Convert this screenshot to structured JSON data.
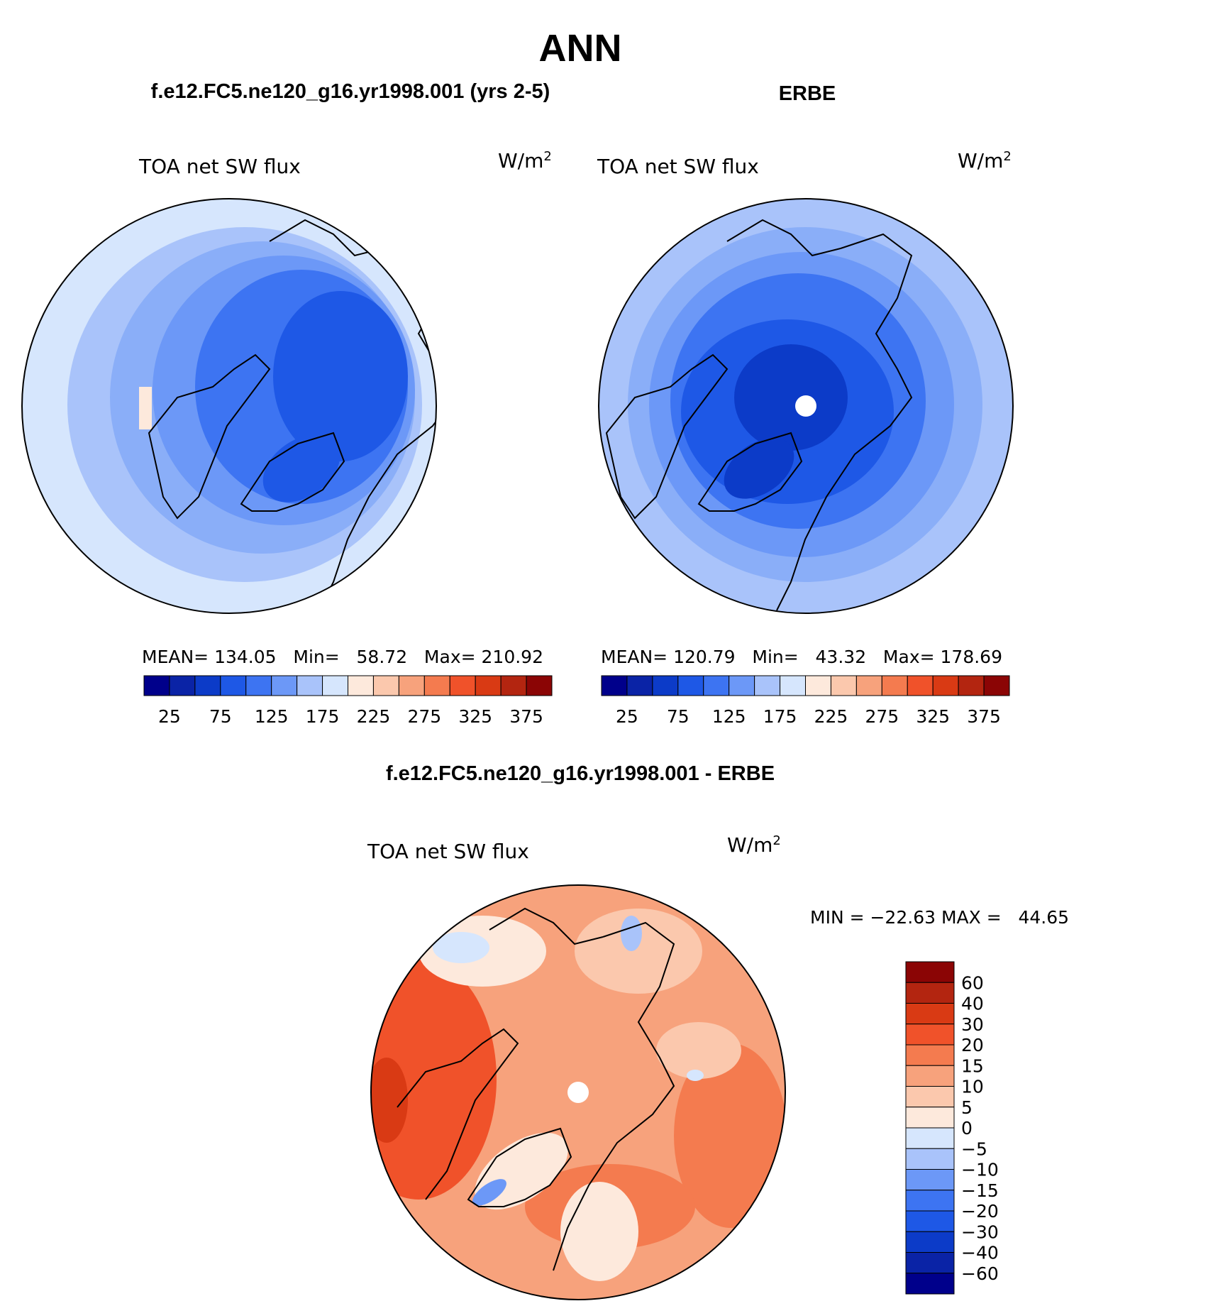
{
  "title": "ANN",
  "panels": [
    {
      "case": "f.e12.FC5.ne120_g16.yr1998.001 (yrs 2-5)",
      "variable": "TOA net SW flux",
      "units": "W/m",
      "units_exp": "2",
      "stats": "MEAN= 134.05   Min=   58.72   Max= 210.92",
      "colorbar_labels": [
        "25",
        "75",
        "125",
        "175",
        "225",
        "275",
        "325",
        "375"
      ],
      "dominant_levels": [
        75,
        100,
        125,
        150,
        175,
        200,
        225
      ],
      "pole_hole": false
    },
    {
      "case": "ERBE",
      "variable": "TOA net SW flux",
      "units": "W/m",
      "units_exp": "2",
      "stats": "MEAN= 120.79   Min=   43.32   Max= 178.69",
      "colorbar_labels": [
        "25",
        "75",
        "125",
        "175",
        "225",
        "275",
        "325",
        "375"
      ],
      "dominant_levels": [
        50,
        75,
        100,
        125,
        150,
        175
      ],
      "pole_hole": true
    }
  ],
  "diff_panel": {
    "title": "f.e12.FC5.ne120_g16.yr1998.001 - ERBE",
    "variable": "TOA net SW flux",
    "units": "W/m",
    "units_exp": "2",
    "minmax": "MIN = −22.63 MAX =   44.65",
    "colorbar_labels": [
      "60",
      "40",
      "30",
      "20",
      "15",
      "10",
      "5",
      "0",
      "−5",
      "−10",
      "−15",
      "−20",
      "−30",
      "−40",
      "−60"
    ]
  },
  "colors": {
    "abs_scale": [
      "#00008b",
      "#0a23a6",
      "#0c3bc8",
      "#1e58e6",
      "#3d74f2",
      "#6c98f7",
      "#a9c3fa",
      "#d6e6fd",
      "#fde9dc",
      "#fbc8ad",
      "#f7a27c",
      "#f47b4f",
      "#f0522a",
      "#d93a14",
      "#b32510",
      "#8b0505"
    ],
    "diff_scale": [
      "#8b0505",
      "#b32510",
      "#d93a14",
      "#f0522a",
      "#f47b4f",
      "#f7a27c",
      "#fbc8ad",
      "#fde9dc",
      "#d6e6fd",
      "#a9c3fa",
      "#6c98f7",
      "#3d74f2",
      "#1e58e6",
      "#0c3bc8",
      "#0a23a6",
      "#00008b"
    ]
  },
  "chart_data": [
    {
      "type": "heatmap",
      "title": "f.e12.FC5.ne120_g16.yr1998.001 (yrs 2-5)",
      "variable": "TOA net SW flux",
      "units": "W/m2",
      "projection": "north polar stereographic",
      "contour_levels": [
        25,
        50,
        75,
        100,
        125,
        150,
        175,
        200,
        225,
        250,
        275,
        300,
        325,
        350,
        375
      ],
      "stats": {
        "mean": 134.05,
        "min": 58.72,
        "max": 210.92
      }
    },
    {
      "type": "heatmap",
      "title": "ERBE",
      "variable": "TOA net SW flux",
      "units": "W/m2",
      "projection": "north polar stereographic",
      "contour_levels": [
        25,
        50,
        75,
        100,
        125,
        150,
        175,
        200,
        225,
        250,
        275,
        300,
        325,
        350,
        375
      ],
      "stats": {
        "mean": 120.79,
        "min": 43.32,
        "max": 178.69
      }
    },
    {
      "type": "heatmap",
      "title": "f.e12.FC5.ne120_g16.yr1998.001 - ERBE",
      "variable": "TOA net SW flux",
      "units": "W/m2",
      "projection": "north polar stereographic",
      "contour_levels": [
        -60,
        -40,
        -30,
        -20,
        -15,
        -10,
        -5,
        0,
        5,
        10,
        15,
        20,
        30,
        40,
        60
      ],
      "stats": {
        "min": -22.63,
        "max": 44.65
      }
    }
  ]
}
